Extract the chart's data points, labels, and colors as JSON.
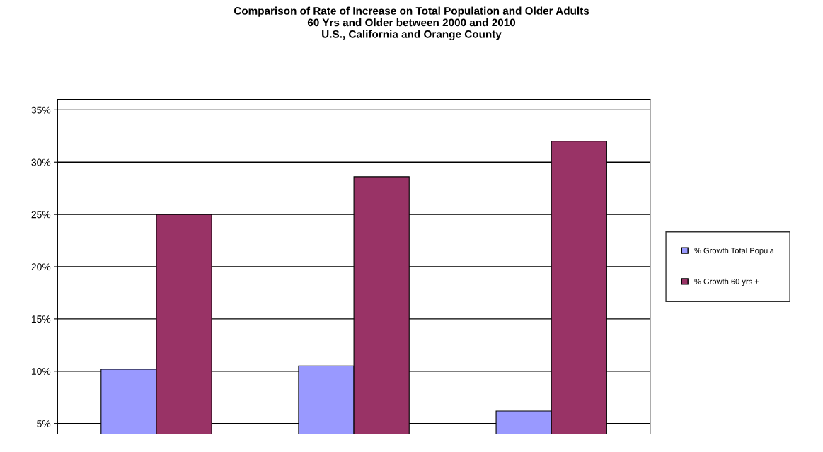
{
  "chart_data": {
    "type": "bar",
    "title": "Comparison of Rate of Increase on Total Population and Older Adults\n60 Yrs and Older between 2000 and 2010\nU.S., California and Orange County",
    "categories": [
      null,
      null,
      null
    ],
    "series": [
      {
        "name": "% Growth Total Popula",
        "color": "#9999ff",
        "values": [
          10.2,
          10.5,
          6.2
        ]
      },
      {
        "name": "% Growth 60 yrs +",
        "color": "#993366",
        "values": [
          25.0,
          28.6,
          32.0
        ]
      }
    ],
    "ylim": [
      4,
      36
    ],
    "yticks": [
      {
        "value": 5,
        "label": "5%"
      },
      {
        "value": 10,
        "label": "10%"
      },
      {
        "value": 15,
        "label": "15%"
      },
      {
        "value": 20,
        "label": "20%"
      },
      {
        "value": 25,
        "label": "25%"
      },
      {
        "value": 30,
        "label": "30%"
      },
      {
        "value": 35,
        "label": "35%"
      }
    ],
    "grid": "y",
    "legend": "right"
  }
}
